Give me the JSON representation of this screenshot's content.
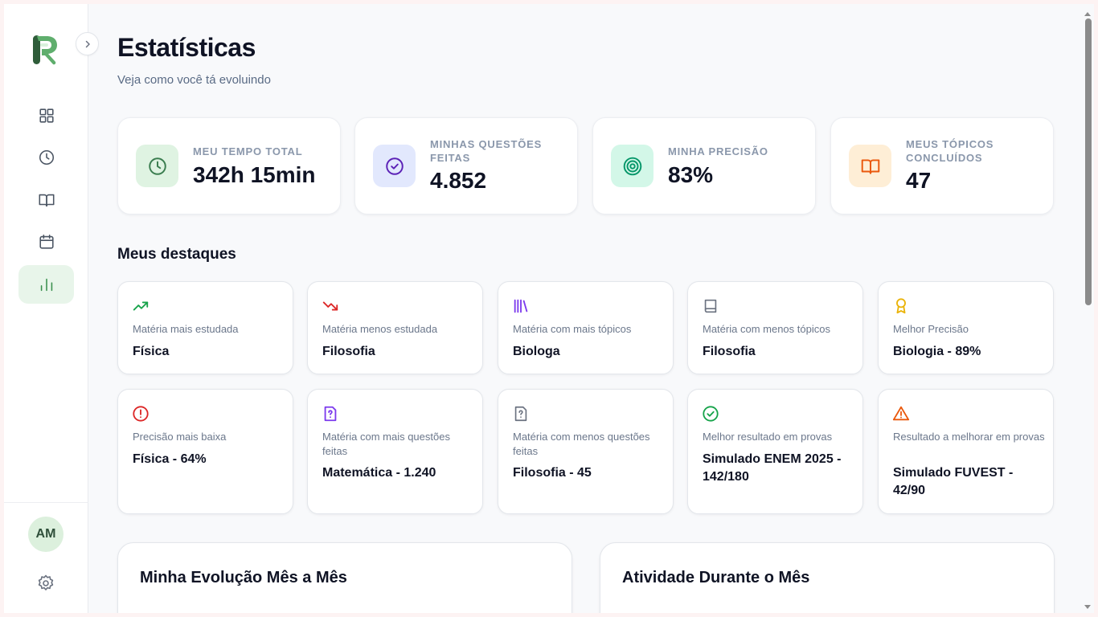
{
  "header": {
    "title": "Estatísticas",
    "subtitle": "Veja como você tá evoluindo"
  },
  "sidebar": {
    "items": [
      {
        "name": "dashboard",
        "icon": "grid-icon"
      },
      {
        "name": "history",
        "icon": "clock-icon"
      },
      {
        "name": "subjects",
        "icon": "book-open-icon"
      },
      {
        "name": "calendar",
        "icon": "calendar-icon"
      },
      {
        "name": "statistics",
        "icon": "bar-chart-icon",
        "active": true
      }
    ],
    "avatar_initials": "AM"
  },
  "stats": [
    {
      "label": "MEU TEMPO TOTAL",
      "value": "342h 15min",
      "icon": "clock-icon",
      "color": "#3a7d4f",
      "bg": "#dff3e2"
    },
    {
      "label": "MINHAS QUESTÕES FEITAS",
      "value": "4.852",
      "icon": "check-circle-icon",
      "color": "#5b21b6",
      "bg": "#e2e8fd"
    },
    {
      "label": "MINHA PRECISÃO",
      "value": "83%",
      "icon": "target-icon",
      "color": "#059669",
      "bg": "#d3f7e8"
    },
    {
      "label": "MEUS TÓPICOS CONCLUÍDOS",
      "value": "47",
      "icon": "book-open-icon",
      "color": "#ea580c",
      "bg": "#feeed6"
    }
  ],
  "highlights_title": "Meus destaques",
  "highlights": [
    {
      "label": "Matéria mais estudada",
      "value": "Física",
      "icon": "trending-up-icon",
      "color": "#16a34a"
    },
    {
      "label": "Matéria menos estudada",
      "value": "Filosofia",
      "icon": "trending-down-icon",
      "color": "#dc2626"
    },
    {
      "label": "Matéria com mais tópicos",
      "value": "Biologa",
      "icon": "library-icon",
      "color": "#7c3aed"
    },
    {
      "label": "Matéria com menos tópicos",
      "value": "Filosofia",
      "icon": "book-icon",
      "color": "#6b7280"
    },
    {
      "label": "Melhor Precisão",
      "value": "Biologia - 89%",
      "icon": "award-icon",
      "color": "#eab308"
    },
    {
      "label": "Precisão mais baixa",
      "value": "Física - 64%",
      "icon": "alert-circle-icon",
      "color": "#dc2626"
    },
    {
      "label": "Matéria com mais questões feitas",
      "value": "Matemática - 1.240",
      "icon": "file-question-icon",
      "color": "#7c3aed"
    },
    {
      "label": "Matéria com menos questões feitas",
      "value": "Filosofia - 45",
      "icon": "file-question-icon",
      "color": "#6b7280"
    },
    {
      "label": "Melhor resultado em provas",
      "value": "Simulado ENEM 2025 - 142/180",
      "icon": "check-circle-icon",
      "color": "#16a34a"
    },
    {
      "label": "Resultado a melhorar em provas",
      "value": "Simulado FUVEST - 42/90",
      "icon": "alert-triangle-icon",
      "color": "#ea580c"
    }
  ],
  "panels": [
    {
      "title": "Minha Evolução Mês a Mês"
    },
    {
      "title": "Atividade Durante o Mês"
    }
  ]
}
